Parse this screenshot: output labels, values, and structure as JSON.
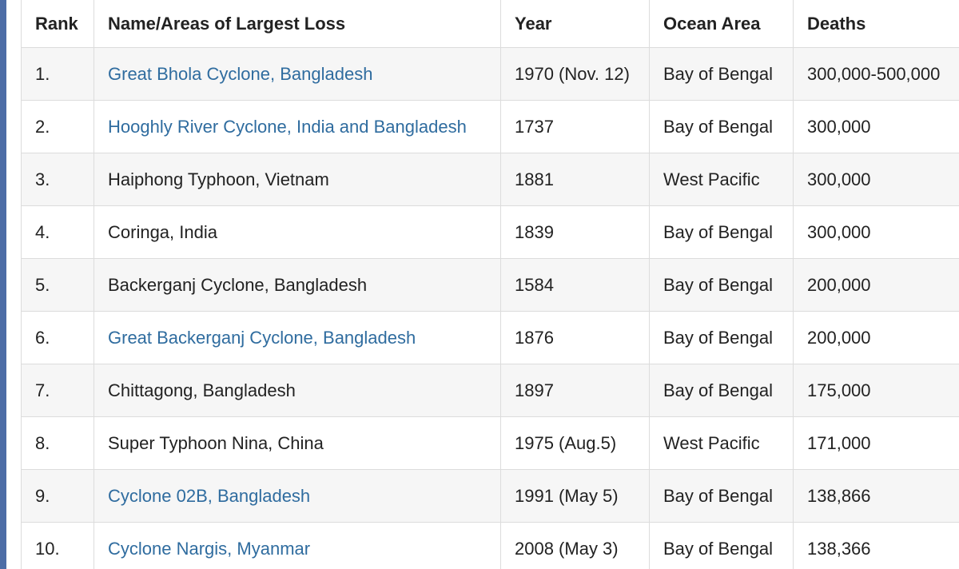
{
  "table": {
    "headers": [
      "Rank",
      "Name/Areas of Largest Loss",
      "Year",
      "Ocean Area",
      "Deaths"
    ],
    "rows": [
      {
        "cells": [
          "1.",
          "Great Bhola Cyclone, Bangladesh",
          "1970 (Nov. 12)",
          "Bay of Bengal",
          "300,000-500,000"
        ],
        "link": true
      },
      {
        "cells": [
          "2.",
          "Hooghly River Cyclone, India and Bangladesh",
          "1737",
          "Bay of Bengal",
          "300,000"
        ],
        "link": true
      },
      {
        "cells": [
          "3.",
          "Haiphong Typhoon, Vietnam",
          "1881",
          "West Pacific",
          "300,000"
        ],
        "link": false
      },
      {
        "cells": [
          "4.",
          "Coringa, India",
          "1839",
          "Bay of Bengal",
          "300,000"
        ],
        "link": false
      },
      {
        "cells": [
          "5.",
          "Backerganj Cyclone, Bangladesh",
          "1584",
          "Bay of Bengal",
          "200,000"
        ],
        "link": false
      },
      {
        "cells": [
          "6.",
          "Great Backerganj Cyclone, Bangladesh",
          "1876",
          "Bay of Bengal",
          "200,000"
        ],
        "link": true
      },
      {
        "cells": [
          "7.",
          "Chittagong, Bangladesh",
          "1897",
          "Bay of Bengal",
          "175,000"
        ],
        "link": false
      },
      {
        "cells": [
          "8.",
          "Super Typhoon Nina, China",
          "1975 (Aug.5)",
          "West Pacific",
          "171,000"
        ],
        "link": false
      },
      {
        "cells": [
          "9.",
          "Cyclone 02B, Bangladesh",
          "1991 (May 5)",
          "Bay of Bengal",
          "138,866"
        ],
        "link": true
      },
      {
        "cells": [
          "10.",
          "Cyclone Nargis, Myanmar",
          "2008 (May 3)",
          "Bay of Bengal",
          "138,366"
        ],
        "link": true
      }
    ]
  }
}
